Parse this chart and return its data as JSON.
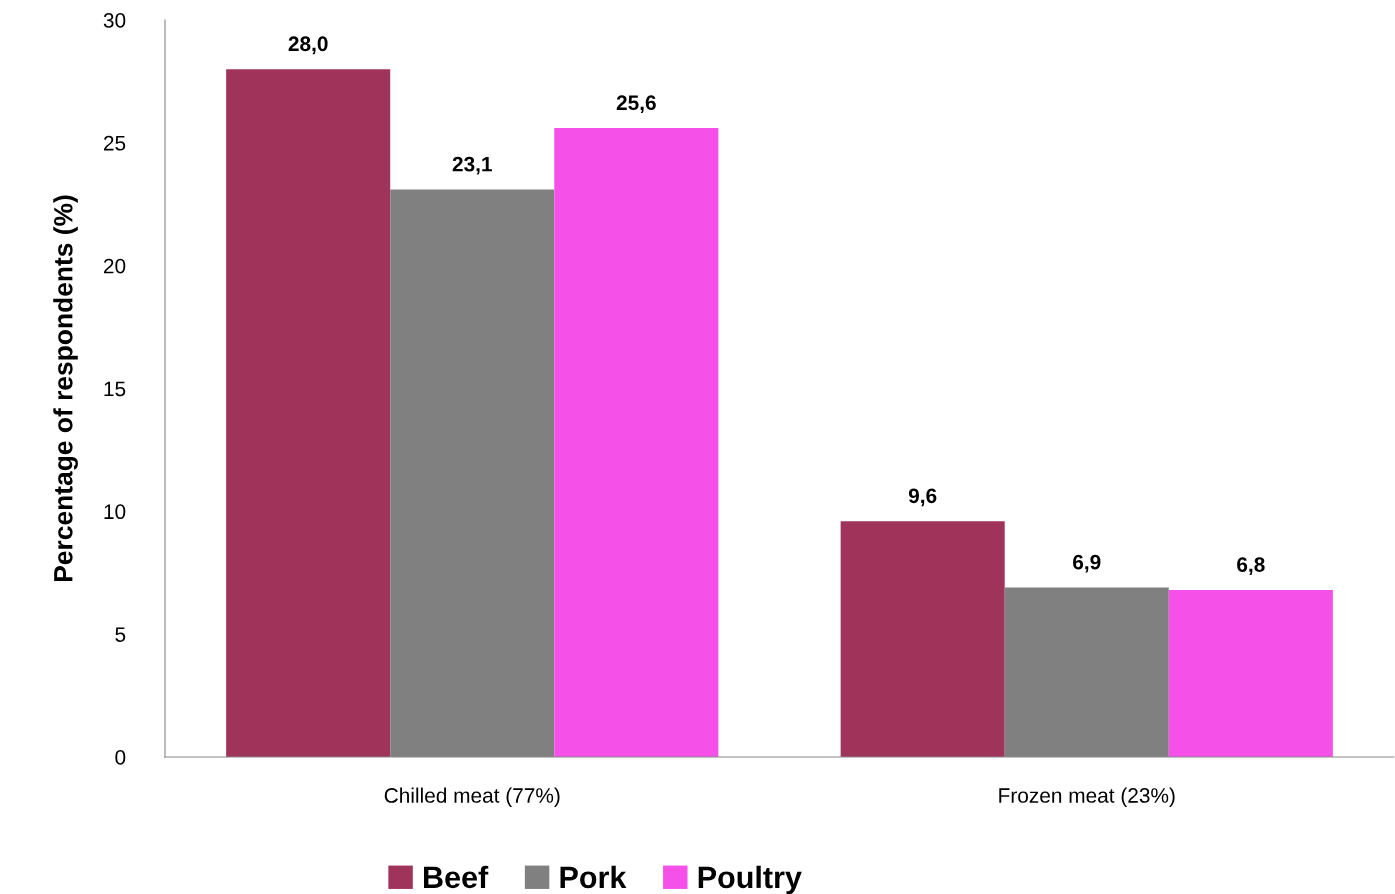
{
  "chart_data": {
    "type": "bar",
    "ylabel": "Percentage of respondents (%)",
    "categories": [
      "Chilled meat (77%)",
      "Frozen meat (23%)"
    ],
    "series": [
      {
        "name": "Beef",
        "color": "#a0335a",
        "values": [
          28.0,
          9.6
        ],
        "value_labels": [
          "28,0",
          "9,6"
        ]
      },
      {
        "name": "Pork",
        "color": "#808080",
        "values": [
          23.1,
          6.9
        ],
        "value_labels": [
          "23,1",
          "6,9"
        ]
      },
      {
        "name": "Poultry",
        "color": "#f550e8",
        "values": [
          25.6,
          6.8
        ],
        "value_labels": [
          "25,6",
          "6,8"
        ]
      }
    ],
    "ylim": [
      0,
      30
    ],
    "yticks": [
      0,
      5,
      10,
      15,
      20,
      25,
      30
    ],
    "grid": false,
    "legend": "bottom"
  }
}
